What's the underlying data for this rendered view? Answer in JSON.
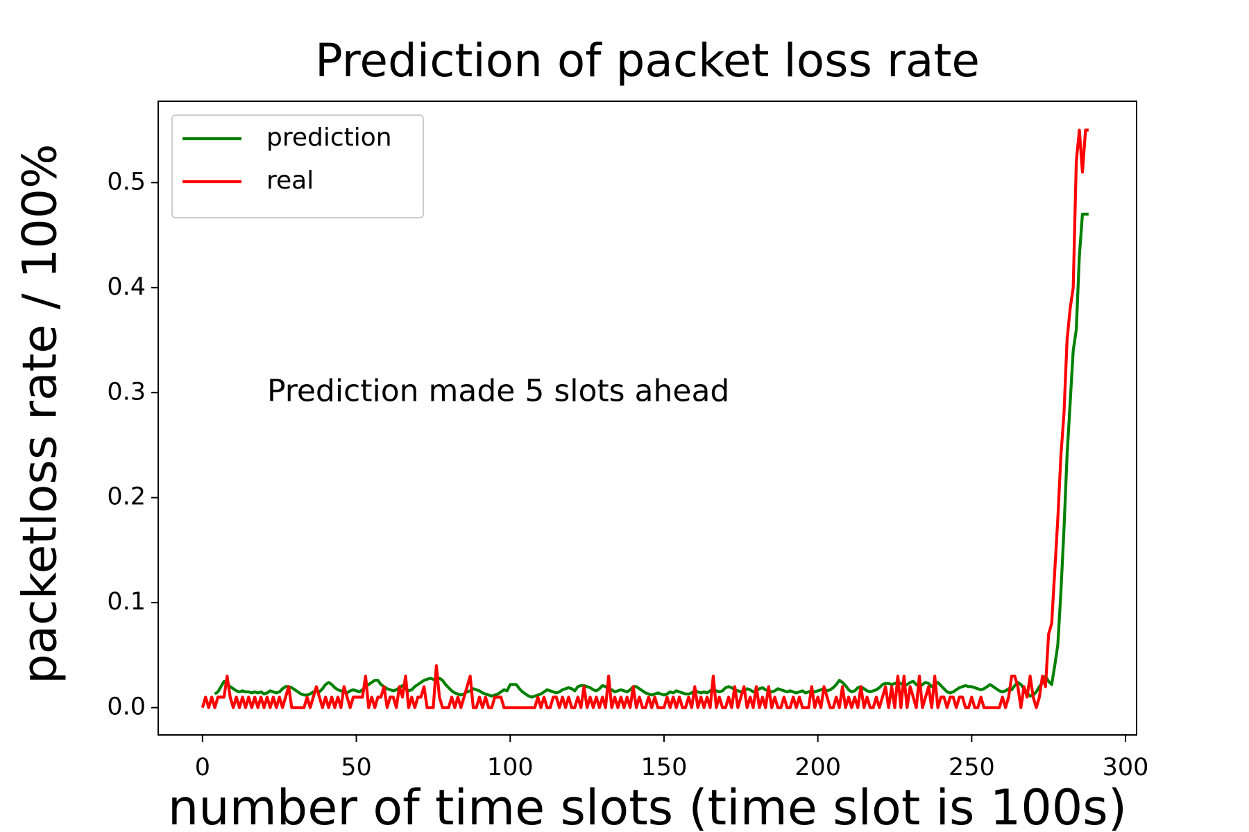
{
  "chart_data": {
    "type": "line",
    "title": "Prediction of packet loss rate",
    "xlabel": "number of time slots (time slot is 100s)",
    "ylabel": "packetloss rate / 100%",
    "annotation": "Prediction made 5 slots ahead",
    "xlim": [
      -14.4,
      303.6
    ],
    "ylim": [
      -0.026,
      0.5775
    ],
    "xticks": [
      0,
      50,
      100,
      150,
      200,
      250,
      300
    ],
    "yticks": [
      {
        "value": 0,
        "label": "0.0"
      },
      0.1,
      0.2,
      0.3,
      0.4,
      0.5
    ],
    "legend": "upper left",
    "grid": false,
    "x": [
      0,
      1,
      2,
      3,
      4,
      5,
      6,
      7,
      8,
      9,
      10,
      11,
      12,
      13,
      14,
      15,
      16,
      17,
      18,
      19,
      20,
      21,
      22,
      23,
      24,
      25,
      26,
      27,
      28,
      29,
      30,
      31,
      32,
      33,
      34,
      35,
      36,
      37,
      38,
      39,
      40,
      41,
      42,
      43,
      44,
      45,
      46,
      47,
      48,
      49,
      50,
      51,
      52,
      53,
      54,
      55,
      56,
      57,
      58,
      59,
      60,
      61,
      62,
      63,
      64,
      65,
      66,
      67,
      68,
      69,
      70,
      71,
      72,
      73,
      74,
      75,
      76,
      77,
      78,
      79,
      80,
      81,
      82,
      83,
      84,
      85,
      86,
      87,
      88,
      89,
      90,
      91,
      92,
      93,
      94,
      95,
      96,
      97,
      98,
      99,
      100,
      101,
      102,
      103,
      104,
      105,
      106,
      107,
      108,
      109,
      110,
      111,
      112,
      113,
      114,
      115,
      116,
      117,
      118,
      119,
      120,
      121,
      122,
      123,
      124,
      125,
      126,
      127,
      128,
      129,
      130,
      131,
      132,
      133,
      134,
      135,
      136,
      137,
      138,
      139,
      140,
      141,
      142,
      143,
      144,
      145,
      146,
      147,
      148,
      149,
      150,
      151,
      152,
      153,
      154,
      155,
      156,
      157,
      158,
      159,
      160,
      161,
      162,
      163,
      164,
      165,
      166,
      167,
      168,
      169,
      170,
      171,
      172,
      173,
      174,
      175,
      176,
      177,
      178,
      179,
      180,
      181,
      182,
      183,
      184,
      185,
      186,
      187,
      188,
      189,
      190,
      191,
      192,
      193,
      194,
      195,
      196,
      197,
      198,
      199,
      200,
      201,
      202,
      203,
      204,
      205,
      206,
      207,
      208,
      209,
      210,
      211,
      212,
      213,
      214,
      215,
      216,
      217,
      218,
      219,
      220,
      221,
      222,
      223,
      224,
      225,
      226,
      227,
      228,
      229,
      230,
      231,
      232,
      233,
      234,
      235,
      236,
      237,
      238,
      239,
      240,
      241,
      242,
      243,
      244,
      245,
      246,
      247,
      248,
      249,
      250,
      251,
      252,
      253,
      254,
      255,
      256,
      257,
      258,
      259,
      260,
      261,
      262,
      263,
      264,
      265,
      266,
      267,
      268,
      269,
      270,
      271,
      272,
      273,
      274,
      275,
      276,
      277,
      278,
      279,
      280,
      281,
      282,
      283,
      284,
      285,
      286,
      287,
      288
    ],
    "series": [
      {
        "name": "prediction",
        "color": "#008000",
        "values": [
          null,
          null,
          null,
          null,
          0.013,
          0.015,
          0.02,
          0.025,
          0.022,
          0.02,
          0.018,
          0.016,
          0.015,
          0.016,
          0.015,
          0.015,
          0.014,
          0.015,
          0.014,
          0.015,
          0.013,
          0.014,
          0.016,
          0.015,
          0.014,
          0.015,
          0.018,
          0.02,
          0.02,
          0.019,
          0.017,
          0.015,
          0.013,
          0.012,
          0.012,
          0.013,
          0.015,
          0.016,
          0.015,
          0.018,
          0.022,
          0.024,
          0.022,
          0.019,
          0.017,
          0.016,
          0.015,
          0.014,
          0.016,
          0.017,
          0.016,
          0.015,
          0.017,
          0.02,
          0.022,
          0.024,
          0.026,
          0.026,
          0.022,
          0.02,
          0.018,
          0.017,
          0.016,
          0.017,
          0.019,
          0.021,
          0.018,
          0.016,
          0.017,
          0.02,
          0.022,
          0.024,
          0.026,
          0.027,
          0.028,
          0.027,
          0.025,
          0.028,
          0.026,
          0.022,
          0.019,
          0.016,
          0.014,
          0.013,
          0.012,
          0.013,
          0.015,
          0.016,
          0.018,
          0.017,
          0.016,
          0.014,
          0.013,
          0.012,
          0.011,
          0.012,
          0.013,
          0.015,
          0.017,
          0.016,
          0.022,
          0.022,
          0.022,
          0.018,
          0.015,
          0.013,
          0.011,
          0.01,
          0.011,
          0.012,
          0.013,
          0.015,
          0.017,
          0.016,
          0.015,
          0.014,
          0.015,
          0.017,
          0.018,
          0.019,
          0.018,
          0.016,
          0.02,
          0.021,
          0.021,
          0.02,
          0.019,
          0.017,
          0.016,
          0.018,
          0.021,
          0.02,
          0.018,
          0.017,
          0.015,
          0.016,
          0.017,
          0.016,
          0.015,
          0.017,
          0.02,
          0.02,
          0.018,
          0.016,
          0.014,
          0.013,
          0.012,
          0.013,
          0.014,
          0.013,
          0.012,
          0.013,
          0.015,
          0.014,
          0.016,
          0.015,
          0.014,
          0.013,
          0.013,
          0.014,
          0.016,
          0.015,
          0.014,
          0.015,
          0.014,
          0.016,
          0.017,
          0.016,
          0.015,
          0.016,
          0.019,
          0.02,
          0.019,
          0.017,
          0.016,
          0.015,
          0.016,
          0.018,
          0.017,
          0.015,
          0.016,
          0.018,
          0.019,
          0.017,
          0.016,
          0.015,
          0.016,
          0.018,
          0.017,
          0.016,
          0.015,
          0.016,
          0.015,
          0.014,
          0.015,
          0.016,
          0.014,
          0.015,
          0.016,
          0.015,
          0.016,
          0.017,
          0.018,
          0.016,
          0.017,
          0.019,
          0.022,
          0.026,
          0.024,
          0.021,
          0.017,
          0.015,
          0.016,
          0.019,
          0.02,
          0.018,
          0.016,
          0.015,
          0.016,
          0.017,
          0.019,
          0.022,
          0.023,
          0.023,
          0.022,
          0.023,
          0.024,
          0.023,
          0.021,
          0.022,
          0.024,
          0.025,
          0.022,
          0.02,
          0.022,
          0.024,
          0.023,
          0.02,
          0.022,
          0.024,
          0.021,
          0.018,
          0.015,
          0.014,
          0.015,
          0.017,
          0.019,
          0.02,
          0.021,
          0.02,
          0.02,
          0.019,
          0.018,
          0.017,
          0.018,
          0.02,
          0.022,
          0.02,
          0.018,
          0.016,
          0.015,
          0.016,
          0.018,
          0.017,
          0.021,
          0.024,
          0.022,
          0.018,
          0.014,
          0.011,
          0.012,
          0.015,
          0.02,
          0.024,
          0.03,
          0.025,
          0.022,
          0.04,
          0.06,
          0.11,
          0.17,
          0.24,
          0.29,
          0.34,
          0.36,
          0.43,
          0.47,
          0.47,
          0.47
        ]
      },
      {
        "name": "real",
        "color": "#ff0000",
        "values": [
          0,
          0.01,
          0,
          0.01,
          0,
          0.01,
          0.01,
          0.01,
          0.03,
          0.01,
          0,
          0.01,
          0,
          0.01,
          0,
          0.01,
          0,
          0.01,
          0,
          0.01,
          0,
          0.01,
          0,
          0.01,
          0,
          0.01,
          0,
          0.01,
          0.02,
          0,
          0,
          0,
          0,
          0,
          0.01,
          0,
          0.01,
          0.02,
          0.01,
          0,
          0.01,
          0,
          0.01,
          0,
          0.01,
          0,
          0.02,
          0.01,
          0,
          0.01,
          0.01,
          0.01,
          0.01,
          0.03,
          0,
          0.01,
          0,
          0.01,
          0.01,
          0.02,
          0,
          0.01,
          0.01,
          0,
          0.02,
          0.01,
          0.03,
          0,
          0.01,
          0,
          0.01,
          0.01,
          0.02,
          0,
          0,
          0,
          0.04,
          0.01,
          0,
          0,
          0,
          0.01,
          0,
          0.01,
          0,
          0.01,
          0.02,
          0.03,
          0,
          0,
          0.01,
          0,
          0.01,
          0,
          0,
          0.01,
          0.01,
          0.01,
          0,
          0,
          0,
          0,
          0,
          0,
          0,
          0,
          0,
          0,
          0,
          0.01,
          0,
          0.01,
          0,
          0,
          0.01,
          0.01,
          0,
          0.01,
          0,
          0.01,
          0,
          0,
          0.01,
          0,
          0.02,
          0,
          0.01,
          0,
          0.01,
          0,
          0.01,
          0,
          0.03,
          0,
          0.01,
          0,
          0.01,
          0,
          0.01,
          0,
          0.02,
          0,
          0.01,
          0,
          0,
          0.01,
          0,
          0.01,
          0,
          0,
          0,
          0.01,
          0,
          0.01,
          0,
          0.01,
          0,
          0,
          0.01,
          0,
          0.02,
          0,
          0.01,
          0,
          0.01,
          0,
          0.03,
          0,
          0.01,
          0,
          0,
          0.01,
          0,
          0.02,
          0,
          0.01,
          0.02,
          0,
          0.01,
          0,
          0.02,
          0,
          0.01,
          0,
          0.02,
          0,
          0.01,
          0,
          0,
          0.01,
          0,
          0,
          0.01,
          0,
          0.01,
          0,
          0,
          0,
          0.02,
          0,
          0.01,
          0,
          0.02,
          0.01,
          0,
          0,
          0.01,
          0,
          0.02,
          0,
          0.01,
          0,
          0.01,
          0,
          0.02,
          0,
          0.01,
          0,
          0,
          0.01,
          0,
          0.01,
          0.02,
          0,
          0.02,
          0,
          0.03,
          0,
          0.03,
          0,
          0.02,
          0.01,
          0,
          0.03,
          0,
          0.01,
          0.02,
          0,
          0.03,
          0,
          0.01,
          0.01,
          0,
          0.01,
          0.01,
          0,
          0.01,
          0.01,
          0,
          0,
          0.01,
          0,
          0,
          0.01,
          0,
          0,
          0,
          0,
          0,
          0,
          0.01,
          0,
          0.01,
          0.03,
          0.03,
          0.02,
          0,
          0.02,
          0.01,
          0.03,
          0.01,
          0,
          0.01,
          0.03,
          0.02,
          0.07,
          0.08,
          0.13,
          0.18,
          0.24,
          0.28,
          0.35,
          0.38,
          0.4,
          0.52,
          0.55,
          0.51,
          0.55,
          0.55
        ]
      }
    ]
  }
}
